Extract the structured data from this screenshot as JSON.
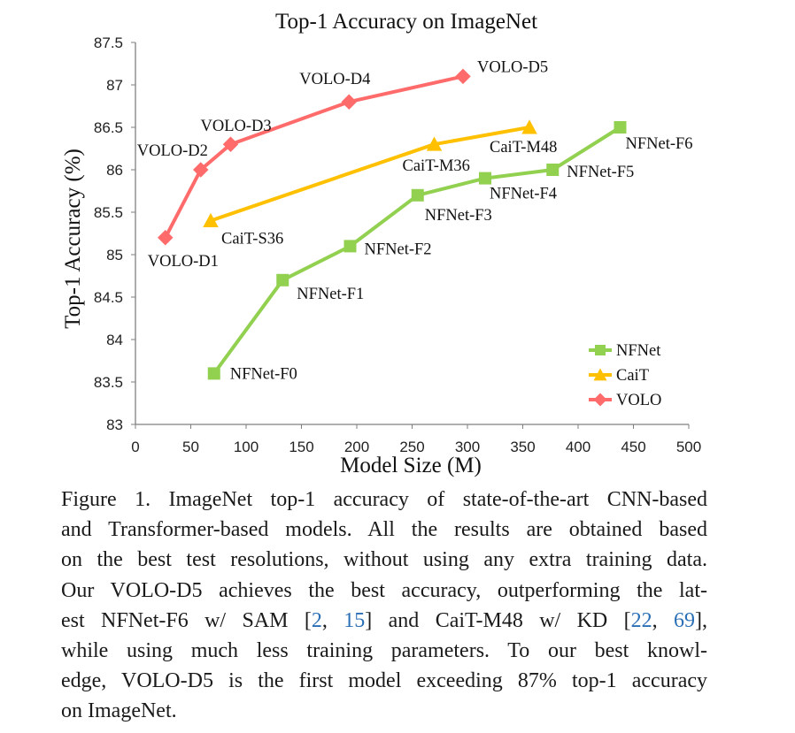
{
  "chart_data": {
    "type": "line",
    "title": "Top-1 Accuracy on ImageNet",
    "xlabel": "Model Size (M)",
    "ylabel": "Top-1 Accuracy (%)",
    "xlim": [
      0,
      500
    ],
    "ylim": [
      83,
      87.5
    ],
    "xticks": [
      "0",
      "50",
      "100",
      "150",
      "200",
      "250",
      "300",
      "350",
      "400",
      "450",
      "500"
    ],
    "yticks": [
      "83",
      "83.5",
      "84",
      "84.5",
      "85",
      "85.5",
      "86",
      "86.5",
      "87",
      "87.5"
    ],
    "grid": false,
    "legend_position": "bottom-right",
    "series": [
      {
        "name": "NFNet",
        "color": "#92d050",
        "marker": "square",
        "points": [
          {
            "x": 71,
            "y": 83.6,
            "label": "NFNet-F0"
          },
          {
            "x": 133,
            "y": 84.7,
            "label": "NFNet-F1"
          },
          {
            "x": 194,
            "y": 85.1,
            "label": "NFNet-F2"
          },
          {
            "x": 255,
            "y": 85.7,
            "label": "NFNet-F3"
          },
          {
            "x": 316,
            "y": 85.9,
            "label": "NFNet-F4"
          },
          {
            "x": 377,
            "y": 86.0,
            "label": "NFNet-F5"
          },
          {
            "x": 438,
            "y": 86.5,
            "label": "NFNet-F6"
          }
        ]
      },
      {
        "name": "CaiT",
        "color": "#ffc000",
        "marker": "triangle",
        "points": [
          {
            "x": 68,
            "y": 85.4,
            "label": "CaiT-S36"
          },
          {
            "x": 270,
            "y": 86.3,
            "label": "CaiT-M36"
          },
          {
            "x": 356,
            "y": 86.5,
            "label": "CaiT-M48"
          }
        ]
      },
      {
        "name": "VOLO",
        "color": "#ff6b6b",
        "marker": "diamond",
        "points": [
          {
            "x": 27,
            "y": 85.2,
            "label": "VOLO-D1"
          },
          {
            "x": 59,
            "y": 86.0,
            "label": "VOLO-D2"
          },
          {
            "x": 86,
            "y": 86.3,
            "label": "VOLO-D3"
          },
          {
            "x": 193,
            "y": 86.8,
            "label": "VOLO-D4"
          },
          {
            "x": 296,
            "y": 87.1,
            "label": "VOLO-D5"
          }
        ]
      }
    ]
  },
  "caption": {
    "lines": [
      [
        {
          "t": "Figure 1. ImageNet top-1 accuracy of state-of-the-art CNN-based"
        }
      ],
      [
        {
          "t": "and Transformer-based models. All the results are obtained based"
        }
      ],
      [
        {
          "t": "on the best test resolutions, without using any extra training data."
        }
      ],
      [
        {
          "t": "Our VOLO-D5 achieves the best accuracy, outperforming the lat-"
        }
      ],
      [
        {
          "t": "est NFNet-F6 w/ SAM ["
        },
        {
          "t": "2",
          "cite": true
        },
        {
          "t": ", "
        },
        {
          "t": "15",
          "cite": true
        },
        {
          "t": "] and CaiT-M48 w/ KD ["
        },
        {
          "t": "22",
          "cite": true
        },
        {
          "t": ", "
        },
        {
          "t": "69",
          "cite": true
        },
        {
          "t": "],"
        }
      ],
      [
        {
          "t": "while using much less training parameters.  To our best knowl-"
        }
      ],
      [
        {
          "t": "edge, VOLO-D5 is the first model exceeding 87% top-1 accuracy"
        }
      ],
      [
        {
          "t": "on ImageNet."
        }
      ]
    ]
  }
}
